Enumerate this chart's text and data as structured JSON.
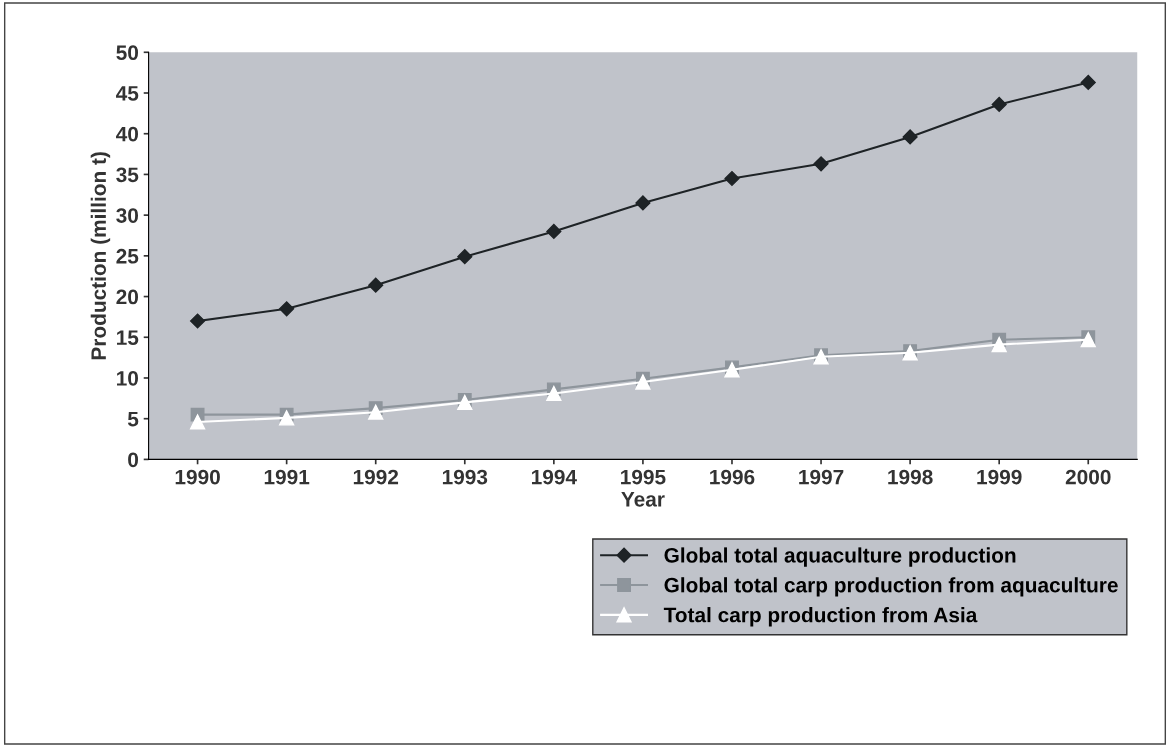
{
  "chart_data": {
    "type": "line",
    "xlabel": "Year",
    "ylabel": "Production (million t)",
    "categories": [
      "1990",
      "1991",
      "1992",
      "1993",
      "1994",
      "1995",
      "1996",
      "1997",
      "1998",
      "1999",
      "2000"
    ],
    "series": [
      {
        "name": "Global total aquaculture production",
        "color": "#1e2326",
        "marker": "diamond",
        "values": [
          17.0,
          18.5,
          21.4,
          24.9,
          28.0,
          31.5,
          34.5,
          36.3,
          39.6,
          43.6,
          46.3
        ]
      },
      {
        "name": "Global total carp production from aquaculture",
        "color": "#8e959c",
        "marker": "square",
        "values": [
          5.5,
          5.5,
          6.3,
          7.3,
          8.6,
          9.9,
          11.3,
          12.8,
          13.3,
          14.7,
          15.0
        ]
      },
      {
        "name": "Total carp production from Asia",
        "color": "#ffffff",
        "marker": "triangle",
        "values": [
          4.6,
          5.1,
          5.8,
          7.0,
          8.1,
          9.5,
          11.0,
          12.6,
          13.1,
          14.1,
          14.7
        ]
      }
    ],
    "ylim": [
      0,
      50
    ],
    "yticks": [
      0,
      5,
      10,
      15,
      20,
      25,
      30,
      35,
      40,
      45,
      50
    ],
    "grid": false,
    "legend": "bottom right",
    "line_style": "solid"
  }
}
